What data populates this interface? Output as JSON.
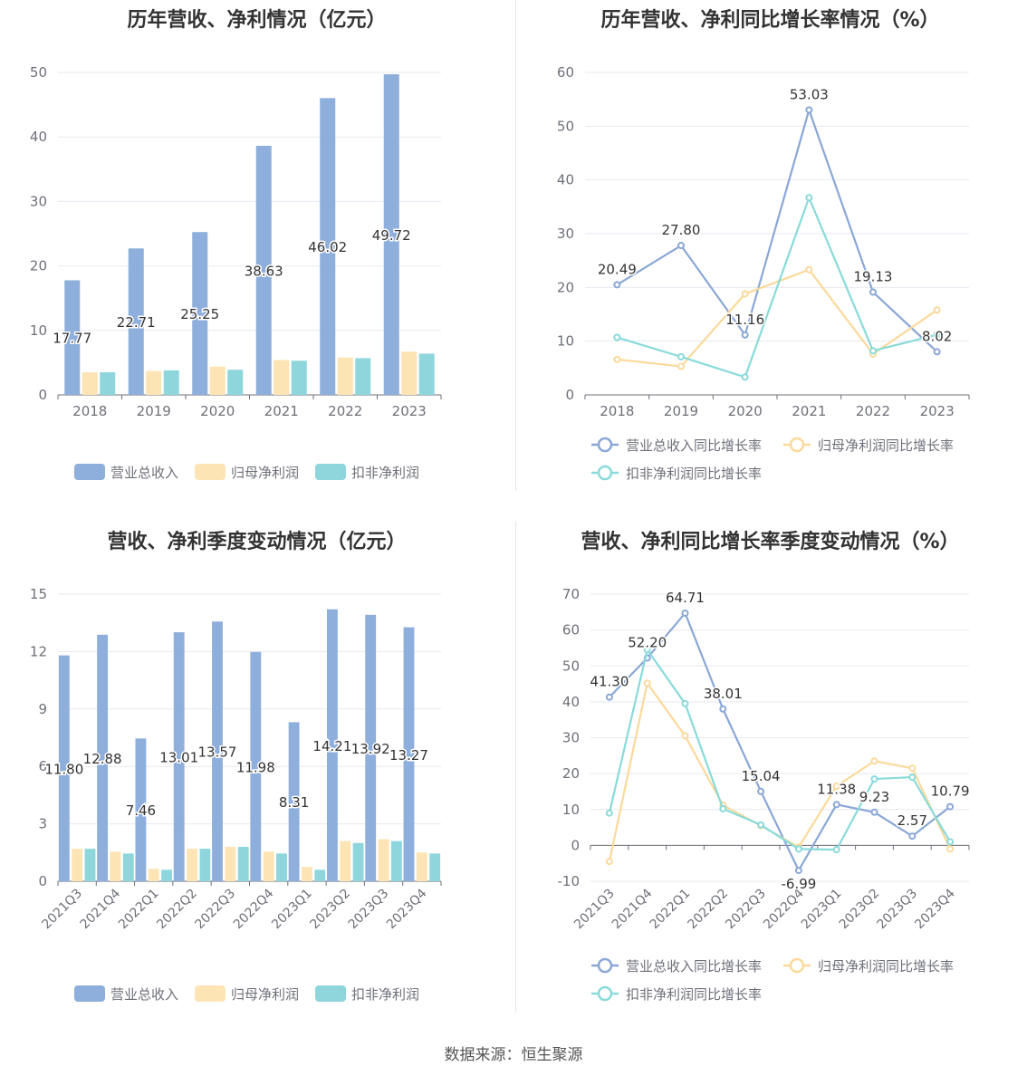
{
  "colors": {
    "revenue": "#8eaedb",
    "net_profit": "#fde4b5",
    "deducted_profit": "#8ed6dc",
    "revenue_line": "#8aa7d6",
    "net_line": "#fbd99a",
    "deducted_line": "#89dada",
    "grid": "#e6e9f0",
    "axis_text": "#6e7079",
    "label_text": "#333333"
  },
  "footer": {
    "source": "数据来源：恒生聚源"
  },
  "chart_data": [
    {
      "type": "bar",
      "title": "历年营收、净利情况（亿元）",
      "categories": [
        "2018",
        "2019",
        "2020",
        "2021",
        "2022",
        "2023"
      ],
      "ylim": [
        0,
        50
      ],
      "yticks": [
        0,
        10,
        20,
        30,
        40,
        50
      ],
      "series": [
        {
          "name": "营业总收入",
          "values": [
            17.77,
            22.71,
            25.25,
            38.63,
            46.02,
            49.72
          ],
          "show_labels": true
        },
        {
          "name": "归母净利润",
          "values": [
            3.5,
            3.7,
            4.4,
            5.4,
            5.8,
            6.7
          ],
          "show_labels": false
        },
        {
          "name": "扣非净利润",
          "values": [
            3.5,
            3.8,
            3.9,
            5.3,
            5.7,
            6.4
          ],
          "show_labels": false
        }
      ],
      "labels": [
        "17.77",
        "22.71",
        "25.25",
        "38.63",
        "46.02",
        "49.72"
      ],
      "legend": "bottom"
    },
    {
      "type": "line",
      "title": "历年营收、净利同比增长率情况（%）",
      "categories": [
        "2018",
        "2019",
        "2020",
        "2021",
        "2022",
        "2023"
      ],
      "ylim": [
        0,
        60
      ],
      "yticks": [
        0,
        10,
        20,
        30,
        40,
        50,
        60
      ],
      "series": [
        {
          "name": "营业总收入同比增长率",
          "values": [
            20.49,
            27.8,
            11.16,
            53.03,
            19.13,
            8.02
          ],
          "show_labels": true
        },
        {
          "name": "归母净利润同比增长率",
          "values": [
            6.6,
            5.3,
            18.8,
            23.3,
            7.6,
            15.8
          ],
          "show_labels": false
        },
        {
          "name": "扣非净利润同比增长率",
          "values": [
            10.7,
            7.1,
            3.3,
            36.7,
            8.2,
            11.2
          ],
          "show_labels": false
        }
      ],
      "labels": [
        "20.49",
        "27.80",
        "11.16",
        "53.03",
        "19.13",
        "8.02"
      ],
      "legend": "bottom"
    },
    {
      "type": "bar",
      "title": "营收、净利季度变动情况（亿元）",
      "categories": [
        "2021Q3",
        "2021Q4",
        "2022Q1",
        "2022Q2",
        "2022Q3",
        "2022Q4",
        "2023Q1",
        "2023Q2",
        "2023Q3",
        "2023Q4"
      ],
      "ylim": [
        0,
        15
      ],
      "yticks": [
        0,
        3,
        6,
        9,
        12,
        15
      ],
      "series": [
        {
          "name": "营业总收入",
          "values": [
            11.8,
            12.88,
            7.46,
            13.01,
            13.57,
            11.98,
            8.31,
            14.21,
            13.92,
            13.27
          ],
          "show_labels": true
        },
        {
          "name": "归母净利润",
          "values": [
            1.7,
            1.55,
            0.65,
            1.7,
            1.8,
            1.55,
            0.75,
            2.1,
            2.2,
            1.5
          ],
          "show_labels": false
        },
        {
          "name": "扣非净利润",
          "values": [
            1.7,
            1.45,
            0.6,
            1.7,
            1.8,
            1.45,
            0.6,
            2.0,
            2.1,
            1.45
          ],
          "show_labels": false
        }
      ],
      "labels": [
        "11.80",
        "12.88",
        "7.46",
        "13.01",
        "13.57",
        "11.98",
        "8.31",
        "14.21",
        "13.92",
        "13.27"
      ],
      "legend": "bottom"
    },
    {
      "type": "line",
      "title": "营收、净利同比增长率季度变动情况（%）",
      "categories": [
        "2021Q3",
        "2021Q4",
        "2022Q1",
        "2022Q2",
        "2022Q3",
        "2022Q4",
        "2023Q1",
        "2023Q2",
        "2023Q3",
        "2023Q4"
      ],
      "ylim": [
        -10,
        70
      ],
      "yticks": [
        -10,
        0,
        10,
        20,
        30,
        40,
        50,
        60,
        70
      ],
      "series": [
        {
          "name": "营业总收入同比增长率",
          "values": [
            41.3,
            52.2,
            64.71,
            38.01,
            15.04,
            -6.99,
            11.38,
            9.23,
            2.57,
            10.79
          ],
          "show_labels": true
        },
        {
          "name": "归母净利润同比增长率",
          "values": [
            -4.5,
            45.2,
            30.5,
            11.2,
            5.5,
            -0.5,
            16.5,
            23.5,
            21.5,
            -1.0
          ],
          "show_labels": false
        },
        {
          "name": "扣非净利润同比增长率",
          "values": [
            9.0,
            54.5,
            39.5,
            10.2,
            5.7,
            -1.0,
            -1.2,
            18.5,
            19.0,
            1.0
          ],
          "show_labels": false
        }
      ],
      "labels": [
        "41.30",
        "52.20",
        "64.71",
        "38.01",
        "15.04",
        "-6.99",
        "11.38",
        "9.23",
        "2.57",
        "10.79"
      ],
      "legend": "bottom"
    }
  ]
}
